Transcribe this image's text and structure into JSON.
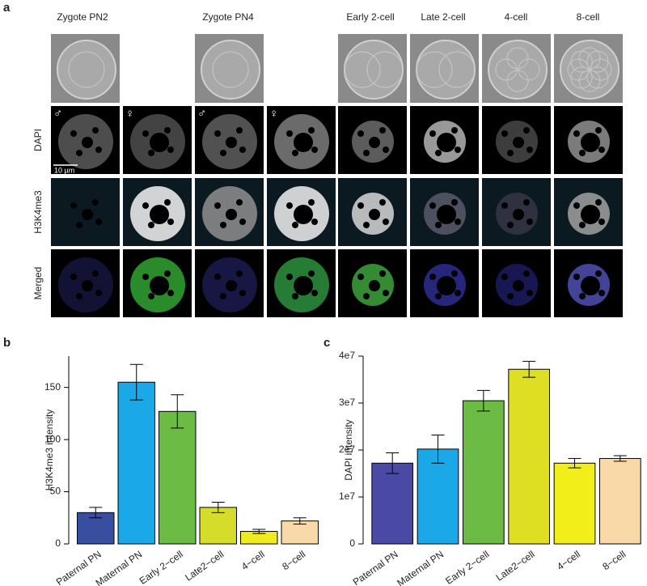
{
  "figure": {
    "panel_a": "a",
    "panel_b": "b",
    "panel_c": "c",
    "columns": [
      "Zygote PN2",
      "Zygote PN4",
      "Early 2-cell",
      "Late 2-cell",
      "4-cell",
      "8-cell"
    ],
    "rows": [
      "DAPI",
      "H3K4me3",
      "Merged"
    ],
    "symbols": [
      "♂",
      "♀",
      "♂",
      "♀"
    ],
    "scale_bar": "10 µm"
  },
  "chart_data": [
    {
      "type": "bar",
      "ylabel": "H3K4me3 intensity",
      "categories": [
        "Paternal PN",
        "Maternal PN",
        "Early 2−cell",
        "Late2−cell",
        "4−cell",
        "8−cell"
      ],
      "values": [
        30,
        155,
        127,
        35,
        12,
        22
      ],
      "errors": [
        5,
        17,
        16,
        5,
        2,
        3
      ],
      "colors": [
        "#3a4ea0",
        "#1ba8e8",
        "#6bbb45",
        "#d6dc2a",
        "#f0eb1e",
        "#f8d9a8"
      ],
      "ylim": [
        0,
        180
      ],
      "yticks": [
        0,
        50,
        100,
        150
      ],
      "grid": false
    },
    {
      "type": "bar",
      "ylabel": "DAPI intensity",
      "categories": [
        "Paternal PN",
        "Maternal PN",
        "Early 2−cell",
        "Late2−cell",
        "4−cell",
        "8−cell"
      ],
      "values": [
        17200000,
        20200000,
        30500000,
        37200000,
        17200000,
        18200000
      ],
      "errors": [
        2200000,
        3000000,
        2200000,
        1700000,
        1000000,
        600000
      ],
      "colors": [
        "#4a4aa6",
        "#1ba8e8",
        "#6bbb45",
        "#dede22",
        "#f2ee1a",
        "#fad9a8"
      ],
      "ylim": [
        0,
        40000000
      ],
      "yticks": [
        0,
        {
          "value": 10000000,
          "label": "1e7"
        },
        {
          "value": 20000000,
          "label": "2e7"
        },
        {
          "value": 30000000,
          "label": "3e7"
        },
        {
          "value": 40000000,
          "label": "4e7"
        }
      ],
      "grid": false
    }
  ]
}
